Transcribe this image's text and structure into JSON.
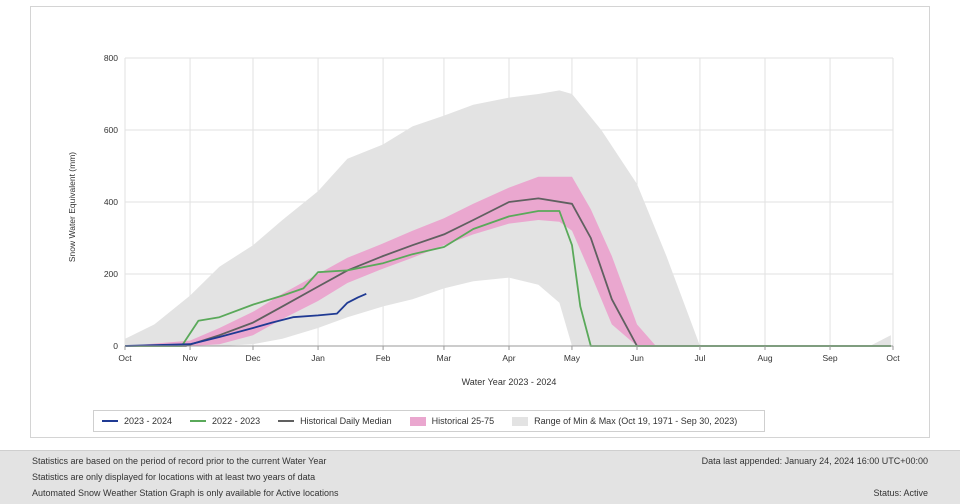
{
  "chart_data": {
    "type": "area",
    "title": "",
    "xlabel": "Water Year 2023 - 2024",
    "ylabel": "Snow Water Equivalent (mm)",
    "ylim": [
      0,
      800
    ],
    "yticks": [
      0,
      200,
      400,
      600,
      800
    ],
    "xticks": [
      "Oct",
      "Nov",
      "Dec",
      "Jan",
      "Feb",
      "Mar",
      "Apr",
      "May",
      "Jun",
      "Jul",
      "Aug",
      "Sep",
      "Oct"
    ],
    "grid": true,
    "legend_position": "bottom",
    "series": [
      {
        "name": "2023 - 2024",
        "type": "line",
        "color": "#1f3a93",
        "x": [
          "Oct 1",
          "Nov 1",
          "Nov 15",
          "Dec 1",
          "Dec 10",
          "Dec 20",
          "Jan 1",
          "Jan 10",
          "Jan 15",
          "Jan 20",
          "Jan 24"
        ],
        "values": [
          0,
          5,
          25,
          50,
          65,
          80,
          85,
          90,
          120,
          135,
          145
        ]
      },
      {
        "name": "2022 - 2023",
        "type": "line",
        "color": "#5aa95a",
        "x": [
          "Oct 1",
          "Oct 28",
          "Nov 5",
          "Nov 15",
          "Dec 1",
          "Dec 15",
          "Dec 25",
          "Jan 1",
          "Jan 15",
          "Feb 1",
          "Feb 15",
          "Mar 1",
          "Mar 15",
          "Apr 1",
          "Apr 15",
          "Apr 25",
          "May 1",
          "May 5",
          "May 10",
          "Jun 1",
          "Sep 30"
        ],
        "values": [
          0,
          0,
          70,
          80,
          115,
          140,
          160,
          205,
          210,
          230,
          255,
          275,
          325,
          360,
          375,
          375,
          280,
          110,
          0,
          0,
          0
        ]
      },
      {
        "name": "Historical Daily Median",
        "type": "line",
        "color": "#606060",
        "x": [
          "Oct 1",
          "Oct 30",
          "Nov 15",
          "Dec 1",
          "Dec 15",
          "Jan 1",
          "Jan 15",
          "Feb 1",
          "Feb 15",
          "Mar 1",
          "Mar 15",
          "Apr 1",
          "Apr 15",
          "May 1",
          "May 10",
          "May 20",
          "Jun 1",
          "Jun 5",
          "Sep 30"
        ],
        "values": [
          0,
          0,
          30,
          65,
          110,
          165,
          210,
          250,
          280,
          310,
          350,
          400,
          410,
          395,
          300,
          130,
          0,
          0,
          0
        ]
      },
      {
        "name": "Historical 25-75",
        "type": "band",
        "color": "#eaa7cf",
        "x": [
          "Oct 1",
          "Nov 1",
          "Nov 15",
          "Dec 1",
          "Dec 15",
          "Jan 1",
          "Jan 15",
          "Feb 1",
          "Feb 15",
          "Mar 1",
          "Mar 15",
          "Apr 1",
          "Apr 15",
          "Apr 25",
          "May 1",
          "May 10",
          "May 20",
          "Jun 1",
          "Jun 10",
          "Sep 30"
        ],
        "low": [
          0,
          0,
          5,
          30,
          75,
          125,
          175,
          215,
          245,
          280,
          310,
          340,
          350,
          345,
          320,
          200,
          60,
          0,
          0,
          0
        ],
        "high": [
          0,
          15,
          50,
          95,
          145,
          200,
          245,
          285,
          320,
          355,
          395,
          440,
          470,
          470,
          470,
          380,
          250,
          60,
          0,
          0
        ]
      },
      {
        "name": "Range of Min & Max (Oct 19, 1971 - Sep 30, 2023)",
        "type": "band",
        "color": "#e3e3e3",
        "x": [
          "Oct 1",
          "Oct 15",
          "Nov 1",
          "Nov 15",
          "Dec 1",
          "Dec 15",
          "Jan 1",
          "Jan 15",
          "Feb 1",
          "Feb 15",
          "Mar 1",
          "Mar 15",
          "Apr 1",
          "Apr 15",
          "Apr 25",
          "May 1",
          "May 15",
          "Jun 1",
          "Jun 15",
          "Jul 1",
          "Sep 20",
          "Sep 30"
        ],
        "low": [
          0,
          0,
          0,
          0,
          5,
          20,
          50,
          80,
          110,
          130,
          160,
          180,
          190,
          170,
          120,
          0,
          0,
          0,
          0,
          0,
          0,
          0
        ],
        "high": [
          20,
          60,
          140,
          220,
          280,
          350,
          430,
          520,
          560,
          610,
          640,
          670,
          690,
          700,
          710,
          700,
          600,
          450,
          250,
          0,
          0,
          30
        ]
      }
    ]
  },
  "legend": {
    "items": [
      {
        "label": "2023 - 2024",
        "color": "#1f3a93",
        "kind": "line"
      },
      {
        "label": "2022 - 2023",
        "color": "#5aa95a",
        "kind": "line"
      },
      {
        "label": "Historical Daily Median",
        "color": "#606060",
        "kind": "line"
      },
      {
        "label": "Historical 25-75",
        "color": "#eaa7cf",
        "kind": "box"
      },
      {
        "label": "Range of Min & Max (Oct 19, 1971 - Sep 30, 2023)",
        "color": "#e3e3e3",
        "kind": "box"
      }
    ]
  },
  "footer": {
    "line1": "Statistics are based on the period of record prior to the current Water Year",
    "line2": "Statistics are only displayed for locations with at least two years of data",
    "line3": "Automated Snow Weather Station Graph is only available for Active locations",
    "last_appended": "Data last appended: January 24, 2024 16:00 UTC+00:00",
    "status": "Status: Active"
  }
}
